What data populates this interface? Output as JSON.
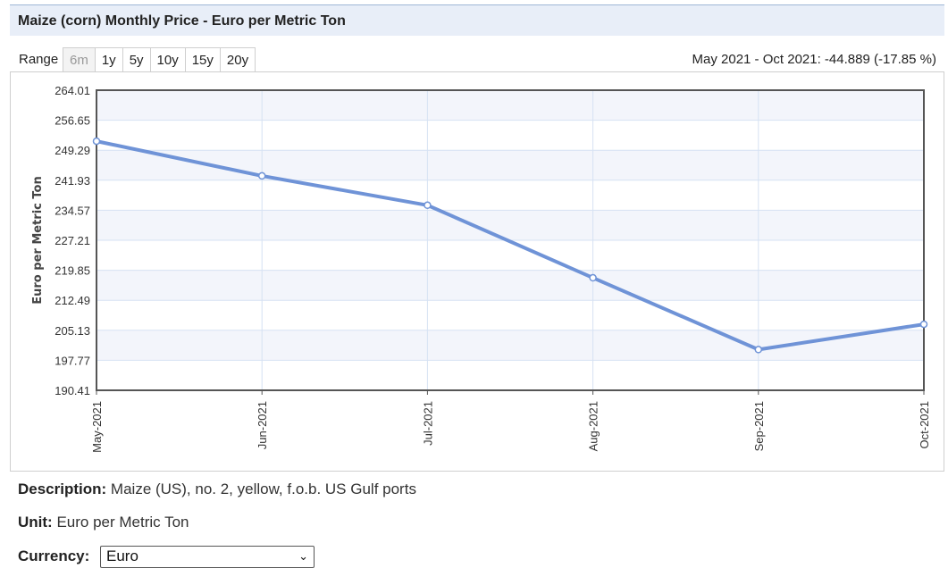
{
  "header": {
    "title": "Maize (corn) Monthly Price - Euro per Metric Ton"
  },
  "range": {
    "label": "Range",
    "buttons": [
      "6m",
      "1y",
      "5y",
      "10y",
      "15y",
      "20y"
    ],
    "active": "6m",
    "change_text": "May 2021 - Oct 2021: -44.889 (-17.85 %)"
  },
  "colors": {
    "line": "#6f93d7",
    "band": "#f3f5fb",
    "grid": "#d6e2f3",
    "axis": "#555555"
  },
  "chart_data": {
    "type": "line",
    "title": "",
    "xlabel": "",
    "ylabel": "Euro per Metric Ton",
    "categories": [
      "May-2021",
      "Jun-2021",
      "Jul-2021",
      "Aug-2021",
      "Sep-2021",
      "Oct-2021"
    ],
    "series": [
      {
        "values": [
          251.5,
          243.0,
          235.8,
          218.0,
          200.4,
          206.6
        ]
      }
    ],
    "yticks": [
      "264.01",
      "256.65",
      "249.29",
      "241.93",
      "234.57",
      "227.21",
      "219.85",
      "212.49",
      "205.13",
      "197.77",
      "190.41"
    ],
    "ylim": [
      190.41,
      264.01
    ],
    "grid": true,
    "legend": "none"
  },
  "details": {
    "description_label": "Description:",
    "description_value": "Maize (US), no. 2, yellow, f.o.b. US Gulf ports",
    "unit_label": "Unit:",
    "unit_value": "Euro per Metric Ton",
    "currency_label": "Currency:",
    "currency_value": "Euro"
  }
}
